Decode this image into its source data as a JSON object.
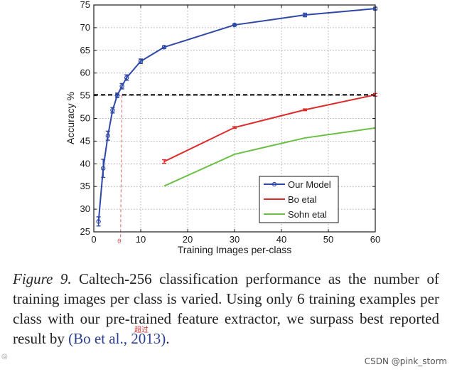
{
  "chart_data": {
    "type": "line",
    "title": "",
    "xlabel": "Training Images per-class",
    "ylabel": "Accuracy %",
    "xlim": [
      0,
      60
    ],
    "ylim": [
      25,
      75
    ],
    "xticks": [
      0,
      10,
      20,
      30,
      40,
      50,
      60
    ],
    "yticks": [
      25,
      30,
      35,
      40,
      45,
      50,
      55,
      60,
      65,
      70,
      75
    ],
    "legend_position": "bottom-right",
    "series": [
      {
        "name": "Our Model",
        "color": "#2f48a8",
        "marker": "circle",
        "x": [
          1,
          2,
          3,
          4,
          5,
          6,
          7,
          10,
          15,
          30,
          45,
          60
        ],
        "y": [
          27.3,
          39.0,
          46.2,
          51.8,
          55.1,
          57.1,
          59.0,
          62.6,
          65.7,
          70.6,
          72.8,
          74.2
        ],
        "err": [
          1.0,
          2.0,
          1.0,
          0.6,
          0.5,
          0.6,
          0.6,
          0.5,
          0.3,
          0.2,
          0.4,
          0.3
        ]
      },
      {
        "name": "Bo etal",
        "color": "#dd2b2b",
        "marker": "none",
        "x": [
          15,
          30,
          45,
          60
        ],
        "y": [
          40.5,
          48.0,
          51.9,
          55.2
        ],
        "err": [
          0.4,
          0.2,
          0.2,
          0.3
        ]
      },
      {
        "name": "Sohn etal",
        "color": "#6cbf45",
        "marker": "none",
        "x": [
          15,
          30,
          45,
          60
        ],
        "y": [
          35.1,
          42.1,
          45.7,
          47.9
        ],
        "err": [
          0,
          0,
          0,
          0
        ]
      }
    ],
    "reference_line": {
      "y": 55.2,
      "style": "dashed",
      "color": "#111111"
    },
    "drop_line": {
      "x": 6,
      "label": "6",
      "color": "#e06060"
    }
  },
  "caption": {
    "label": "Figure 9.",
    "text": "Caltech-256 classification performance as the number of training images per class is varied. Using only 6 training examples per class with our pre-trained feature extractor, we surpass best reported result by",
    "citation": "(Bo et al., 2013)",
    "end": "."
  },
  "annotation": "超过",
  "watermark": "CSDN @pink_storm"
}
